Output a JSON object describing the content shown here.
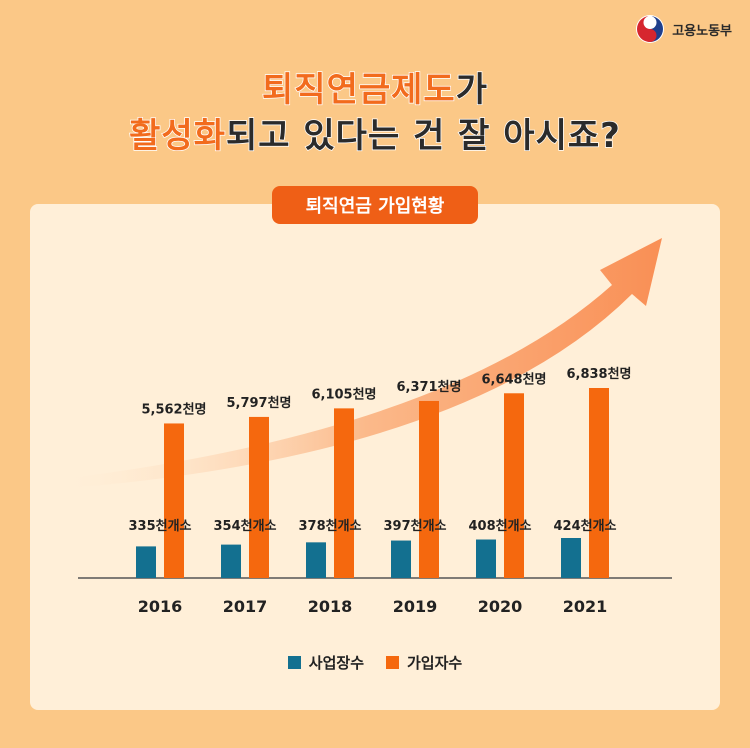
{
  "header": {
    "org_name": "고용노동부",
    "headline_line1_highlight": "퇴직연금제도",
    "headline_line1_rest": "가",
    "headline_line2_highlight": "활성화",
    "headline_line2_rest": "되고 있다는 건 잘 아시죠?"
  },
  "colors": {
    "businesses": "#137090",
    "subscribers": "#F5680E",
    "arrow": "#F98F55"
  },
  "chart_data": {
    "type": "bar",
    "title": "퇴직연금 가입현황",
    "categories": [
      "2016",
      "2017",
      "2018",
      "2019",
      "2020",
      "2021"
    ],
    "series": [
      {
        "name": "사업장수",
        "values": [
          335,
          354,
          378,
          397,
          408,
          424
        ],
        "labels": [
          "335천개소",
          "354천개소",
          "378천개소",
          "397천개소",
          "408천개소",
          "424천개소"
        ]
      },
      {
        "name": "가입자수",
        "values": [
          5562,
          5797,
          6105,
          6371,
          6648,
          6838
        ],
        "labels": [
          "5,562천명",
          "5,797천명",
          "6,105천명",
          "6,371천명",
          "6,648천명",
          "6,838천명"
        ]
      }
    ],
    "legend_position": "bottom",
    "grid": false
  }
}
